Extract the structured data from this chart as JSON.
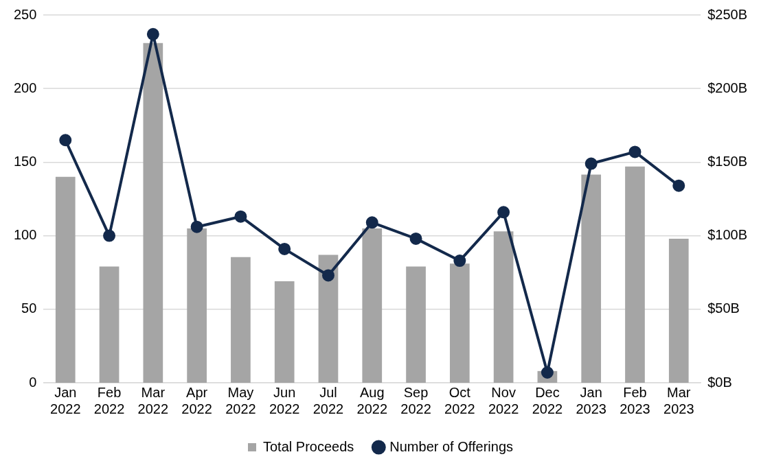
{
  "chart_data": {
    "type": "bar",
    "categories": [
      "Jan 2022",
      "Feb 2022",
      "Mar 2022",
      "Apr 2022",
      "May 2022",
      "Jun 2022",
      "Jul 2022",
      "Aug 2022",
      "Sep 2022",
      "Oct 2022",
      "Nov 2022",
      "Dec 2022",
      "Jan 2023",
      "Feb 2023",
      "Mar 2023"
    ],
    "series": [
      {
        "name": "Total Proceeds",
        "axis": "y2",
        "color": "#a5a5a5",
        "values": [
          140,
          79,
          231,
          105,
          85.5,
          69,
          87,
          105,
          79,
          81,
          103,
          8,
          141.5,
          147,
          98
        ]
      },
      {
        "name": "Number of Offerings",
        "type": "line",
        "axis": "y",
        "color": "#13294b",
        "values": [
          165,
          100,
          237,
          106,
          113,
          91,
          73,
          109,
          98,
          83,
          116,
          7,
          149,
          157,
          134
        ]
      }
    ],
    "ylim": [
      0,
      250
    ],
    "yticks": [
      0,
      50,
      100,
      150,
      200,
      250
    ],
    "y2lim": [
      0,
      250
    ],
    "y2ticks": [
      {
        "value": 0,
        "label": "$0B"
      },
      {
        "value": 50,
        "label": "$50B"
      },
      {
        "value": 100,
        "label": "$100B"
      },
      {
        "value": 150,
        "label": "$150B"
      },
      {
        "value": 200,
        "label": "$200B"
      },
      {
        "value": 250,
        "label": "$250B"
      }
    ],
    "grid": "y",
    "legend": "bottom",
    "marker": "circle"
  }
}
